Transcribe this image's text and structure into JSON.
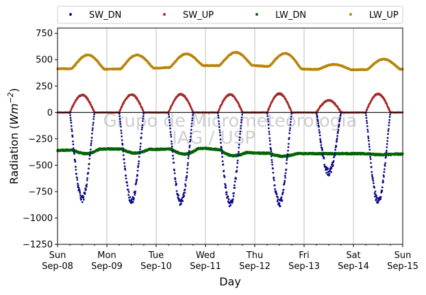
{
  "chart_data": {
    "type": "scatter",
    "ylabel": "Radiation (Wm⁻²)",
    "ylabel_base": "Radiation (",
    "ylabel_unit": "Wm",
    "ylabel_exp": "−2",
    "ylabel_close": ")",
    "xlabel": "Day",
    "ylim": [
      -1250,
      800
    ],
    "yticks": [
      750,
      500,
      250,
      0,
      -250,
      -500,
      -750,
      -1000,
      -1250
    ],
    "ytick_labels": [
      "750",
      "500",
      "250",
      "0",
      "−250",
      "−500",
      "−750",
      "−1000",
      "−1250"
    ],
    "xlim_days": [
      0,
      7
    ],
    "x_ticks": [
      {
        "day": 0,
        "dow": "Sun",
        "date": "Sep-08"
      },
      {
        "day": 1,
        "dow": "Mon",
        "date": "Sep-09"
      },
      {
        "day": 2,
        "dow": "Tue",
        "date": "Sep-10"
      },
      {
        "day": 3,
        "dow": "Wed",
        "date": "Sep-11"
      },
      {
        "day": 4,
        "dow": "Thu",
        "date": "Sep-12"
      },
      {
        "day": 5,
        "dow": "Fri",
        "date": "Sep-13"
      },
      {
        "day": 6,
        "dow": "Sat",
        "date": "Sep-14"
      },
      {
        "day": 7,
        "dow": "Sun",
        "date": "Sep-15"
      }
    ],
    "grid": "vertical",
    "zero_line": true,
    "legend_position": "top, above plot, 4 columns",
    "watermark_lines": [
      "Grupo de Micrometeorologia",
      "IAG / USP"
    ],
    "series": [
      {
        "name": "SW_DN",
        "color": "#0b0b85",
        "peaks": [
          -820,
          -840,
          -850,
          -860,
          -860,
          -570,
          -840
        ]
      },
      {
        "name": "SW_UP",
        "color": "#a52a2a",
        "peaks": [
          165,
          170,
          172,
          170,
          178,
          115,
          175
        ]
      },
      {
        "name": "LW_DN",
        "color": "#006400",
        "night": [
          -360,
          -345,
          -350,
          -340,
          -385,
          -390,
          -390,
          -395
        ],
        "day": [
          -390,
          -385,
          -395,
          -410,
          -415,
          -390,
          -400
        ]
      },
      {
        "name": "LW_UP",
        "color": "#b8860b",
        "night": [
          415,
          410,
          420,
          445,
          445,
          410,
          405,
          410
        ],
        "peaks": [
          545,
          545,
          555,
          570,
          560,
          455,
          505
        ]
      }
    ]
  }
}
